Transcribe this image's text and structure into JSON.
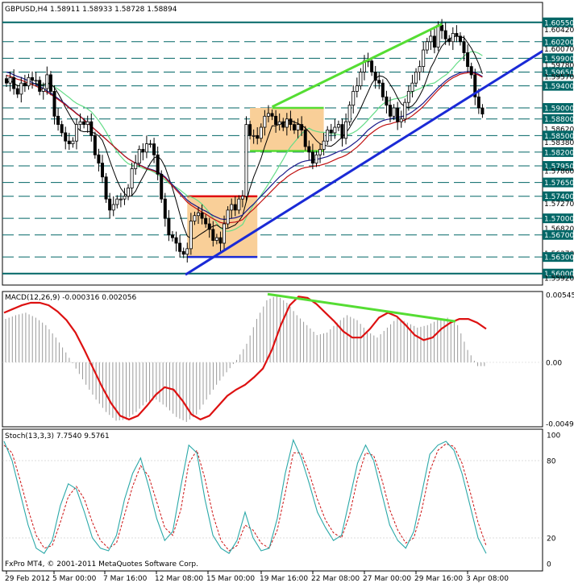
{
  "main": {
    "header": "GBPUSD,H4  1.58911 1.58933 1.58728 1.58894",
    "ylim": [
      1.5585,
      1.6078
    ],
    "price_labels": [
      "1.60550",
      "1.60420",
      "1.60200",
      "1.60070",
      "1.59900",
      "1.59780",
      "1.59650",
      "1.59570",
      "1.59400",
      "1.59000",
      "1.58800",
      "1.58620",
      "1.58500",
      "1.58380",
      "1.58200",
      "1.57950",
      "1.57860",
      "1.57650",
      "1.57400",
      "1.57270",
      "1.57000",
      "1.56820",
      "1.56700",
      "1.56370",
      "1.56300",
      "1.56000",
      "1.55920"
    ],
    "levels": [
      1.6055,
      1.602,
      1.599,
      1.5965,
      1.594,
      1.59,
      1.588,
      1.585,
      1.582,
      1.5795,
      1.5765,
      1.574,
      1.57,
      1.567,
      1.563,
      1.56
    ],
    "highlight_labels": [
      "1.60550",
      "1.60200",
      "1.59900",
      "1.59650",
      "1.59400",
      "1.59000",
      "1.58800",
      "1.58500",
      "1.58200",
      "1.57950",
      "1.57650",
      "1.57400",
      "1.57000",
      "1.56700",
      "1.56300",
      "1.56000"
    ],
    "closes": [
      1.5945,
      1.5955,
      1.5935,
      1.5925,
      1.5945,
      1.594,
      1.5955,
      1.595,
      1.595,
      1.593,
      1.5935,
      1.596,
      1.593,
      1.5885,
      1.587,
      1.5855,
      1.584,
      1.5835,
      1.584,
      1.587,
      1.5875,
      1.587,
      1.5875,
      1.585,
      1.5815,
      1.58,
      1.5775,
      1.5735,
      1.5715,
      1.5725,
      1.5735,
      1.5735,
      1.574,
      1.5755,
      1.579,
      1.58,
      1.5825,
      1.582,
      1.5835,
      1.5835,
      1.5815,
      1.578,
      1.5735,
      1.57,
      1.567,
      1.5665,
      1.5655,
      1.564,
      1.5635,
      1.5645,
      1.5695,
      1.5705,
      1.571,
      1.57,
      1.569,
      1.568,
      1.566,
      1.5665,
      1.5655,
      1.569,
      1.5715,
      1.5725,
      1.5715,
      1.5735,
      1.574,
      1.587,
      1.585,
      1.585,
      1.5845,
      1.5865,
      1.5885,
      1.589,
      1.5885,
      1.587,
      1.5875,
      1.5865,
      1.588,
      1.587,
      1.586,
      1.587,
      1.586,
      1.583,
      1.582,
      1.58,
      1.5815,
      1.5825,
      1.584,
      1.586,
      1.5855,
      1.5865,
      1.587,
      1.5845,
      1.5875,
      1.5905,
      1.593,
      1.594,
      1.5965,
      1.5985,
      1.5985,
      1.5965,
      1.595,
      1.5945,
      1.592,
      1.5905,
      1.5885,
      1.59,
      1.5875,
      1.588,
      1.591,
      1.593,
      1.5945,
      1.5965,
      1.5975,
      1.6005,
      1.602,
      1.603,
      1.601,
      1.605,
      1.604,
      1.6025,
      1.602,
      1.6035,
      1.603,
      1.602,
      1.6,
      1.5975,
      1.596,
      1.592,
      1.59,
      1.5889
    ],
    "ma_slow": [
      1.5965,
      1.5963,
      1.596,
      1.5957,
      1.5955,
      1.5952,
      1.5949,
      1.5946,
      1.5943,
      1.5939,
      1.5935,
      1.5931,
      1.5927,
      1.5922,
      1.5917,
      1.5912,
      1.5907,
      1.5901,
      1.5896,
      1.589,
      1.5885,
      1.5879,
      1.5873,
      1.5867,
      1.5861,
      1.5855,
      1.5849,
      1.5843,
      1.5837,
      1.5831,
      1.5825,
      1.5819,
      1.5813,
      1.5808,
      1.5804,
      1.58,
      1.5797,
      1.5794,
      1.5791,
      1.5789,
      1.5787,
      1.5784,
      1.578,
      1.5775,
      1.5768,
      1.5761,
      1.5754,
      1.5747,
      1.574,
      1.5733,
      1.5728,
      1.5724,
      1.572,
      1.5716,
      1.5713,
      1.5709,
      1.5705,
      1.5702,
      1.5699,
      1.5698,
      1.5699,
      1.57,
      1.5701,
      1.5703,
      1.5706,
      1.5713,
      1.572,
      1.5726,
      1.5733,
      1.574,
      1.5747,
      1.5754,
      1.5761,
      1.5768,
      1.5775,
      1.578,
      1.5786,
      1.5791,
      1.5795,
      1.5799,
      1.5802,
      1.5804,
      1.5805,
      1.5806,
      1.5807,
      1.5808,
      1.581,
      1.5812,
      1.5815,
      1.5818,
      1.5821,
      1.5823,
      1.5826,
      1.583,
      1.5835,
      1.584,
      1.5846,
      1.5853,
      1.586,
      1.5865,
      1.587,
      1.5874,
      1.5877,
      1.5879,
      1.588,
      1.5882,
      1.5883,
      1.5884,
      1.5886,
      1.5889,
      1.5893,
      1.5898,
      1.5903,
      1.5909,
      1.5916,
      1.5923,
      1.593,
      1.5937,
      1.5943,
      1.5949,
      1.5954,
      1.5958,
      1.5961,
      1.5964,
      1.5965,
      1.5966,
      1.5966,
      1.5964,
      1.5961,
      1.5957
    ]
  },
  "chart_data": [
    {
      "type": "candlestick",
      "title": "GBPUSD,H4  1.58911 1.58933 1.58728 1.58894",
      "symbol": "GBPUSD",
      "timeframe": "H4",
      "ohlc_last": {
        "open": 1.58911,
        "high": 1.58933,
        "low": 1.58728,
        "close": 1.58894
      },
      "x_tick_labels": [
        "29 Feb 2012",
        "5 Mar 00:00",
        "7 Mar 16:00",
        "12 Mar 08:00",
        "15 Mar 00:00",
        "19 Mar 16:00",
        "22 Mar 08:00",
        "27 Mar 00:00",
        "29 Mar 16:00",
        "3 Apr 08:00"
      ],
      "ylim": [
        1.5585,
        1.6078
      ],
      "grid": false,
      "annotations": [
        "green rising trendline",
        "blue rising support trendline",
        "orange consolidation rectangles",
        "horizontal support/resistance levels"
      ]
    },
    {
      "type": "line",
      "title": "MACD(12,26,9) -0.000316 0.002056",
      "indicator": "MACD(12,26,9)",
      "readout": {
        "main": -0.000316,
        "signal": 0.002056
      },
      "ylim": [
        -0.00493,
        0.00545
      ],
      "y_tick_labels": [
        "0.00545",
        "0.00",
        "-0.00493"
      ],
      "signal_curve": [
        0.004,
        0.0043,
        0.0046,
        0.0048,
        0.0048,
        0.0046,
        0.0041,
        0.0034,
        0.0024,
        0.001,
        -0.0005,
        -0.002,
        -0.0033,
        -0.0043,
        -0.0046,
        -0.0043,
        -0.0035,
        -0.0026,
        -0.002,
        -0.0022,
        -0.0031,
        -0.0042,
        -0.0046,
        -0.0043,
        -0.0035,
        -0.0027,
        -0.0022,
        -0.0018,
        -0.0012,
        -0.0005,
        0.001,
        0.003,
        0.0046,
        0.0053,
        0.0052,
        0.0047,
        0.004,
        0.0033,
        0.0025,
        0.002,
        0.002,
        0.0027,
        0.0036,
        0.004,
        0.0037,
        0.003,
        0.0022,
        0.0018,
        0.002,
        0.0027,
        0.0032,
        0.0035,
        0.0035,
        0.0032,
        0.0027
      ],
      "histogram": [
        0.0035,
        0.0038,
        0.004,
        0.0036,
        0.003,
        0.002,
        0.0008,
        -0.0005,
        -0.0018,
        -0.003,
        -0.004,
        -0.0047,
        -0.0046,
        -0.004,
        -0.0032,
        -0.003,
        -0.0036,
        -0.0044,
        -0.0048,
        -0.0042,
        -0.003,
        -0.0018,
        -0.0008,
        0.0002,
        0.0015,
        0.0035,
        0.005,
        0.0054,
        0.0048,
        0.0038,
        0.003,
        0.0022,
        0.0024,
        0.0032,
        0.0038,
        0.0034,
        0.0025,
        0.002,
        0.0028,
        0.0036,
        0.0032,
        0.0028,
        0.003,
        0.0034,
        0.0036,
        0.003,
        0.001,
        -0.0003
      ],
      "annotations": [
        "green falling divergence line on MACD peaks"
      ]
    },
    {
      "type": "line",
      "title": "Stoch(13,3,3) 7.7540 9.5761",
      "indicator": "Stoch(13,3,3)",
      "readout": {
        "main": 7.754,
        "signal": 9.5761
      },
      "ylim": [
        0,
        100
      ],
      "y_tick_labels": [
        "100",
        "80",
        "20",
        "0"
      ],
      "main_curve": [
        95,
        80,
        55,
        30,
        12,
        8,
        18,
        45,
        62,
        58,
        40,
        20,
        12,
        10,
        22,
        50,
        70,
        82,
        60,
        35,
        18,
        25,
        60,
        92,
        86,
        50,
        22,
        12,
        8,
        18,
        40,
        20,
        10,
        12,
        35,
        70,
        96,
        82,
        62,
        40,
        28,
        18,
        22,
        50,
        78,
        92,
        80,
        55,
        30,
        18,
        12,
        25,
        55,
        85,
        92,
        95,
        88,
        70,
        45,
        20,
        8
      ],
      "signal_curve": [
        92,
        86,
        65,
        42,
        22,
        12,
        14,
        32,
        52,
        60,
        50,
        32,
        18,
        12,
        16,
        38,
        60,
        76,
        68,
        48,
        28,
        22,
        42,
        78,
        88,
        66,
        38,
        18,
        10,
        14,
        30,
        26,
        16,
        12,
        26,
        55,
        86,
        86,
        70,
        50,
        34,
        24,
        20,
        38,
        66,
        86,
        84,
        66,
        42,
        26,
        16,
        20,
        42,
        72,
        88,
        93,
        91,
        78,
        56,
        32,
        14
      ]
    }
  ],
  "macd": {
    "header": "MACD(12,26,9) -0.000316 0.002056",
    "ylim": [
      -0.00493,
      0.00545
    ],
    "tick_labels": [
      "0.00545",
      "0.00",
      "-0.00493"
    ]
  },
  "stoch": {
    "header": "Stoch(13,3,3) 7.7540 9.5761",
    "ylim": [
      0,
      100
    ],
    "tick_labels": [
      "100",
      "80",
      "20",
      "0"
    ]
  },
  "time_axis": {
    "labels": [
      "29 Feb 2012",
      "5 Mar 00:00",
      "7 Mar 16:00",
      "12 Mar 08:00",
      "15 Mar 00:00",
      "19 Mar 16:00",
      "22 Mar 08:00",
      "27 Mar 00:00",
      "29 Mar 16:00",
      "3 Apr 08:00"
    ]
  },
  "footer": {
    "watermark": "FxPro MT4, © 2001-2011 MetaQuotes Software Corp."
  },
  "colors": {
    "background": "#ffffff",
    "candle": "#000000",
    "level_line": "#006666",
    "level_label_bg": "#006666",
    "trend_green": "#55dd33",
    "trend_blue": "#1a2ad6",
    "rect_fill": "#f9cf98",
    "rect_green": "#55dd33",
    "rect_red": "#e01010",
    "rect_blue": "#1a2ad6",
    "ma_fast": "#000000",
    "ma_green": "#66dd88",
    "ma_red": "#c01010",
    "ma_navy": "#1a1a8a",
    "macd_line": "#dd1111",
    "macd_hist": "#999999",
    "divergence": "#55dd33",
    "stoch_main": "#2aa8a8",
    "stoch_signal": "#cc1111",
    "axis": "#000000"
  }
}
